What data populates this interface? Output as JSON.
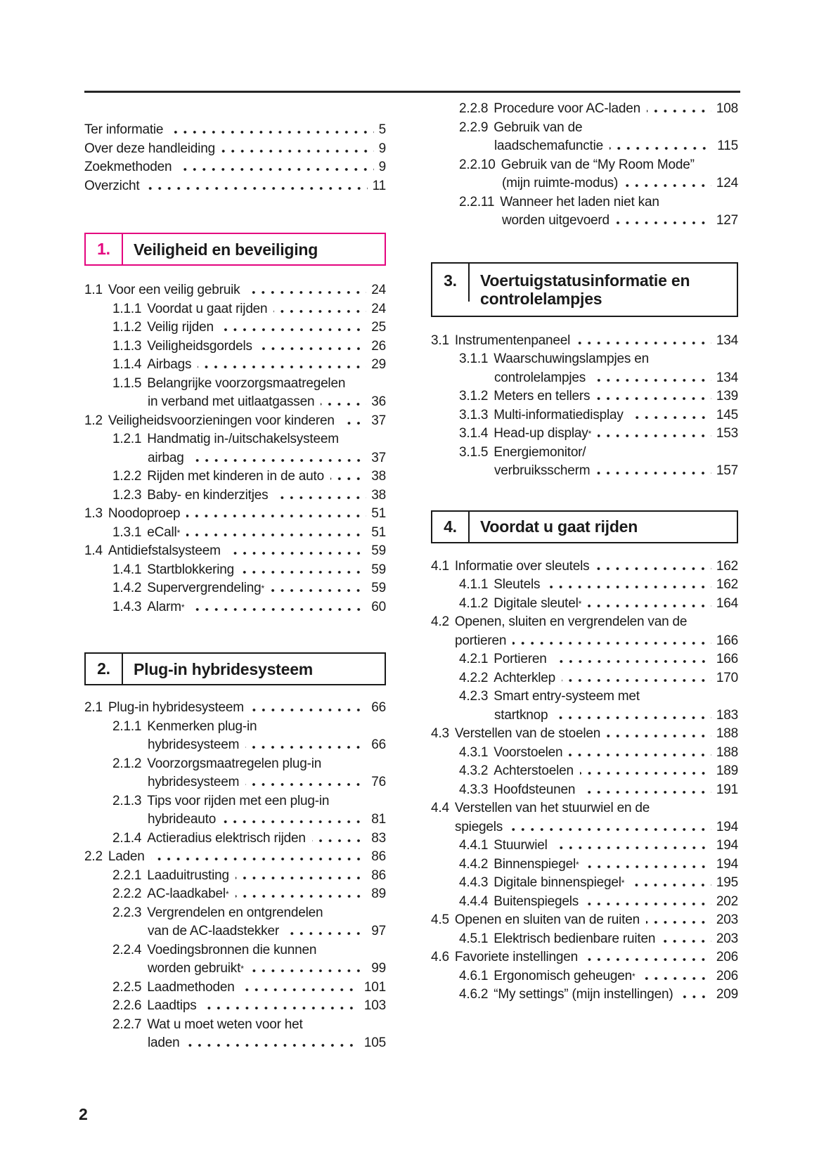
{
  "accent_color": "#e4057f",
  "page_number": "2",
  "intro": [
    {
      "label": "Ter informatie",
      "page": "5"
    },
    {
      "label": "Over deze handleiding",
      "page": "9"
    },
    {
      "label": "Zoekmethoden",
      "page": "9"
    },
    {
      "label": "Overzicht",
      "page": "11"
    }
  ],
  "chapters": [
    {
      "num": "1.",
      "title": "Veiligheid en beveiliging"
    },
    {
      "num": "2.",
      "title": "Plug-in hybridesysteem"
    },
    {
      "num": "3.",
      "title": "Voertuigstatusinformatie en controlelampjes"
    },
    {
      "num": "4.",
      "title": "Voordat u gaat rijden"
    }
  ],
  "s1": [
    {
      "num": "1.1",
      "label": "Voor een veilig gebruik",
      "page": "24"
    },
    {
      "num": "1.1.1",
      "label": "Voordat u gaat rijden",
      "page": "24"
    },
    {
      "num": "1.1.2",
      "label": "Veilig rijden",
      "page": "25"
    },
    {
      "num": "1.1.3",
      "label": "Veiligheidsgordels",
      "page": "26"
    },
    {
      "num": "1.1.4",
      "label": "Airbags",
      "page": "29"
    },
    {
      "num": "1.1.5",
      "line1": "Belangrijke voorzorgsmaatregelen",
      "line2": "in verband met uitlaatgassen",
      "page": "36"
    },
    {
      "num": "1.2",
      "label": "Veiligheidsvoorzieningen voor kinderen",
      "page": "37"
    },
    {
      "num": "1.2.1",
      "line1": "Handmatig in-/uitschakelsysteem",
      "line2": "airbag",
      "page": "37"
    },
    {
      "num": "1.2.2",
      "label": "Rijden met kinderen in de auto",
      "page": "38"
    },
    {
      "num": "1.2.3",
      "label": "Baby- en kinderzitjes",
      "page": "38"
    },
    {
      "num": "1.3",
      "label": "Noodoproep",
      "page": "51"
    },
    {
      "num": "1.3.1",
      "label": "eCall",
      "sup": "*",
      "page": "51"
    },
    {
      "num": "1.4",
      "label": "Antidiefstalsysteem",
      "page": "59"
    },
    {
      "num": "1.4.1",
      "label": "Startblokkering",
      "page": "59"
    },
    {
      "num": "1.4.2",
      "label": "Supervergrendeling",
      "sup": "*",
      "page": "59"
    },
    {
      "num": "1.4.3",
      "label": "Alarm",
      "sup": "*",
      "page": "60"
    }
  ],
  "s2": [
    {
      "num": "2.1",
      "label": "Plug-in hybridesysteem",
      "page": "66"
    },
    {
      "num": "2.1.1",
      "line1": "Kenmerken plug-in",
      "line2": "hybridesysteem",
      "page": "66"
    },
    {
      "num": "2.1.2",
      "line1": "Voorzorgsmaatregelen plug-in",
      "line2": "hybridesysteem",
      "page": "76"
    },
    {
      "num": "2.1.3",
      "line1": "Tips voor rijden met een plug-in",
      "line2": "hybrideauto",
      "page": "81"
    },
    {
      "num": "2.1.4",
      "label": "Actieradius elektrisch rijden",
      "page": "83"
    },
    {
      "num": "2.2",
      "label": "Laden",
      "page": "86"
    },
    {
      "num": "2.2.1",
      "label": "Laaduitrusting",
      "page": "86"
    },
    {
      "num": "2.2.2",
      "label": "AC-laadkabel",
      "sup": "*",
      "page": "89"
    },
    {
      "num": "2.2.3",
      "line1": "Vergrendelen en ontgrendelen",
      "line2": "van de AC-laadstekker",
      "page": "97"
    },
    {
      "num": "2.2.4",
      "line1": "Voedingsbronnen die kunnen",
      "line2": "worden gebruikt",
      "sup": "*",
      "page": "99"
    },
    {
      "num": "2.2.5",
      "label": "Laadmethoden",
      "page": "101"
    },
    {
      "num": "2.2.6",
      "label": "Laadtips",
      "page": "103"
    },
    {
      "num": "2.2.7",
      "line1": "Wat u moet weten voor het",
      "line2": "laden",
      "page": "105"
    }
  ],
  "s2b": [
    {
      "num": "2.2.8",
      "label": "Procedure voor AC-laden",
      "page": "108"
    },
    {
      "num": "2.2.9",
      "line1": "Gebruik van de",
      "line2": "laadschemafunctie",
      "page": "115"
    },
    {
      "num": "2.2.10",
      "line1": "Gebruik van de “My Room Mode”",
      "line2": "(mijn ruimte-modus)",
      "page": "124"
    },
    {
      "num": "2.2.11",
      "line1": "Wanneer het laden niet kan",
      "line2": "worden uitgevoerd",
      "page": "127"
    }
  ],
  "s3": [
    {
      "num": "3.1",
      "label": "Instrumentenpaneel",
      "page": "134"
    },
    {
      "num": "3.1.1",
      "line1": "Waarschuwingslampjes en",
      "line2": "controlelampjes",
      "page": "134"
    },
    {
      "num": "3.1.2",
      "label": "Meters en tellers",
      "page": "139"
    },
    {
      "num": "3.1.3",
      "label": "Multi-informatiedisplay",
      "page": "145"
    },
    {
      "num": "3.1.4",
      "label": "Head-up display",
      "sup": "*",
      "page": "153"
    },
    {
      "num": "3.1.5",
      "line1": "Energiemonitor/",
      "line2": "verbruiksscherm",
      "page": "157"
    }
  ],
  "s4": [
    {
      "num": "4.1",
      "label": "Informatie over sleutels",
      "page": "162"
    },
    {
      "num": "4.1.1",
      "label": "Sleutels",
      "page": "162"
    },
    {
      "num": "4.1.2",
      "label": "Digitale sleutel",
      "sup": "*",
      "page": "164"
    },
    {
      "num": "4.2",
      "line1": "Openen, sluiten en vergrendelen van de",
      "line2": "portieren",
      "page": "166"
    },
    {
      "num": "4.2.1",
      "label": "Portieren",
      "page": "166"
    },
    {
      "num": "4.2.2",
      "label": "Achterklep",
      "page": "170"
    },
    {
      "num": "4.2.3",
      "line1": "Smart entry-systeem met",
      "line2": "startknop",
      "page": "183"
    },
    {
      "num": "4.3",
      "label": "Verstellen van de stoelen",
      "page": "188"
    },
    {
      "num": "4.3.1",
      "label": "Voorstoelen",
      "page": "188"
    },
    {
      "num": "4.3.2",
      "label": "Achterstoelen",
      "page": "189"
    },
    {
      "num": "4.3.3",
      "label": "Hoofdsteunen",
      "page": "191"
    },
    {
      "num": "4.4",
      "line1": "Verstellen van het stuurwiel en de",
      "line2": "spiegels",
      "page": "194"
    },
    {
      "num": "4.4.1",
      "label": "Stuurwiel",
      "page": "194"
    },
    {
      "num": "4.4.2",
      "label": "Binnenspiegel",
      "sup": "*",
      "page": "194"
    },
    {
      "num": "4.4.3",
      "label": "Digitale binnenspiegel",
      "sup": "*",
      "page": "195"
    },
    {
      "num": "4.4.4",
      "label": "Buitenspiegels",
      "page": "202"
    },
    {
      "num": "4.5",
      "label": "Openen en sluiten van de ruiten",
      "page": "203"
    },
    {
      "num": "4.5.1",
      "label": "Elektrisch bedienbare ruiten",
      "page": "203"
    },
    {
      "num": "4.6",
      "label": "Favoriete instellingen",
      "page": "206"
    },
    {
      "num": "4.6.1",
      "label": "Ergonomisch geheugen",
      "sup": "*",
      "page": "206"
    },
    {
      "num": "4.6.2",
      "label": "“My settings” (mijn instellingen)",
      "page": "209"
    }
  ]
}
